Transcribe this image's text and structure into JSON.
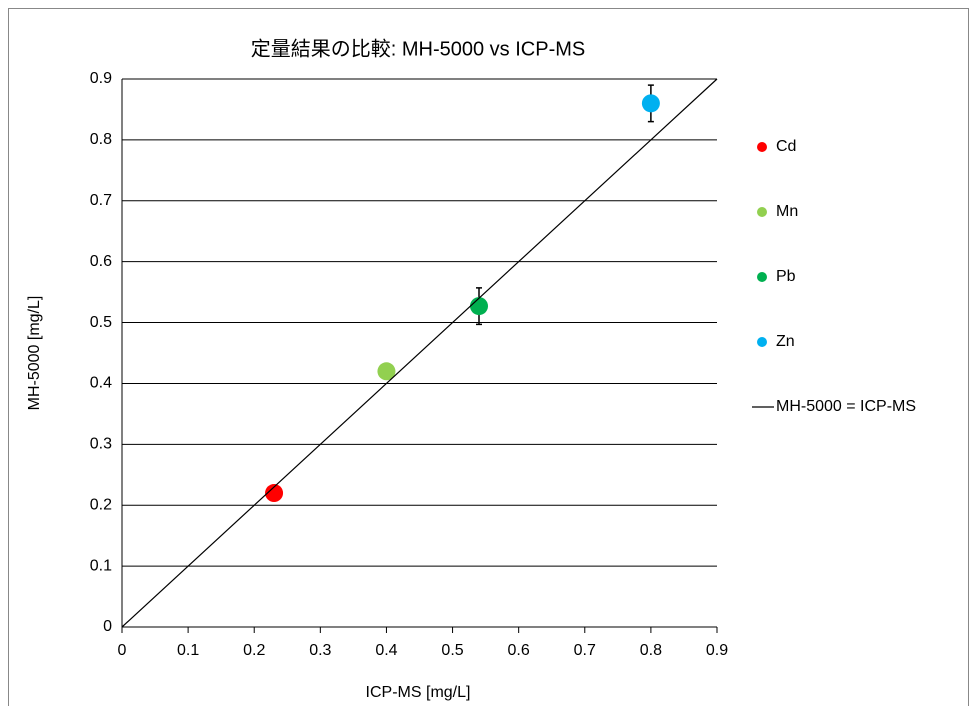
{
  "chart_data": {
    "type": "scatter",
    "title": "定量結果の比較: MH-5000 vs ICP-MS",
    "x_label": "ICP-MS  [mg/L]",
    "y_label": "MH-5000 [mg/L]",
    "xlim": [
      0,
      0.9
    ],
    "ylim": [
      0,
      0.9
    ],
    "xticks": [
      0,
      0.1,
      0.2,
      0.3,
      0.4,
      0.5,
      0.6,
      0.7,
      0.8,
      0.9
    ],
    "yticks": [
      0,
      0.1,
      0.2,
      0.3,
      0.4,
      0.5,
      0.6,
      0.7,
      0.8,
      0.9
    ],
    "grid": true,
    "legend": "right",
    "series": [
      {
        "name": "Cd",
        "type": "scatter",
        "color": "#ff0000",
        "x": [
          0.23
        ],
        "values": [
          0.22
        ]
      },
      {
        "name": "Mn",
        "type": "scatter",
        "color": "#92d050",
        "x": [
          0.4
        ],
        "values": [
          0.42
        ]
      },
      {
        "name": "Pb",
        "type": "scatter",
        "color": "#00b050",
        "x": [
          0.54
        ],
        "values": [
          0.527
        ],
        "errors": [
          0.03
        ]
      },
      {
        "name": "Zn",
        "type": "scatter",
        "color": "#00b0f0",
        "x": [
          0.8
        ],
        "values": [
          0.86
        ],
        "errors": [
          0.03
        ]
      },
      {
        "name": "MH-5000 = ICP-MS",
        "type": "line",
        "color": "#000000",
        "x": [
          0,
          0.9
        ],
        "values": [
          0,
          0.9
        ]
      }
    ]
  }
}
